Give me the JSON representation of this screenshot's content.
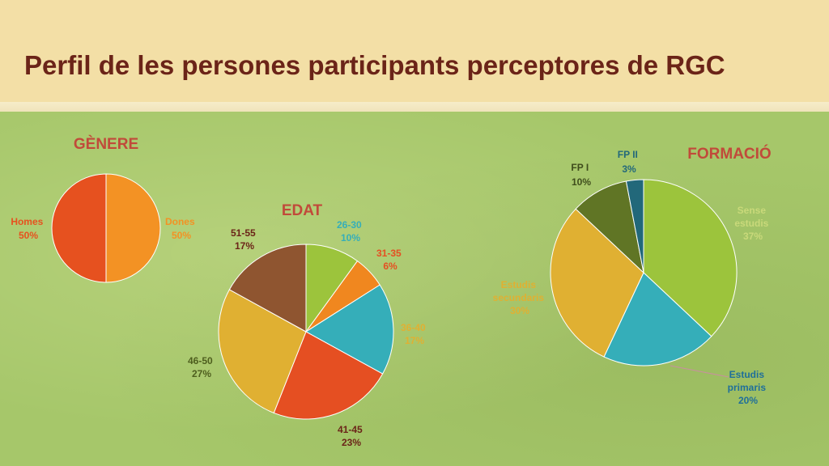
{
  "slide": {
    "title": "Perfil de les persones participants perceptores de RGC"
  },
  "chart_data": [
    {
      "type": "pie",
      "title": "GÈNERE",
      "slices": [
        {
          "label": "Dones",
          "value": 50,
          "value_label": "50%",
          "color": "#f39224"
        },
        {
          "label": "Homes",
          "value": 50,
          "value_label": "50%",
          "color": "#e6511f"
        }
      ]
    },
    {
      "type": "pie",
      "title": "EDAT",
      "slices": [
        {
          "label": "26-30",
          "value": 10,
          "value_label": "10%",
          "color": "#9cc43c"
        },
        {
          "label": "31-35",
          "value": 6,
          "value_label": "6%",
          "color": "#f0871f"
        },
        {
          "label": "36-40",
          "value": 17,
          "value_label": "17%",
          "color": "#35aeb9"
        },
        {
          "label": "41-45",
          "value": 23,
          "value_label": "23%",
          "color": "#e54f22"
        },
        {
          "label": "46-50",
          "value": 27,
          "value_label": "27%",
          "color": "#e0b032"
        },
        {
          "label": "51-55",
          "value": 17,
          "value_label": "17%",
          "color": "#8f5530"
        }
      ]
    },
    {
      "type": "pie",
      "title": "FORMACIÓ",
      "slices": [
        {
          "label": "Sense estudis",
          "value": 37,
          "value_label": "37%",
          "color": "#9cc43c"
        },
        {
          "label": "Estudis primaris",
          "value": 20,
          "value_label": "20%",
          "color": "#35aeb9"
        },
        {
          "label": "Estudis secundaris",
          "value": 30,
          "value_label": "30%",
          "color": "#e0b032"
        },
        {
          "label": "FP I",
          "value": 10,
          "value_label": "10%",
          "color": "#607525"
        },
        {
          "label": "FP II",
          "value": 3,
          "value_label": "3%",
          "color": "#22687a"
        }
      ]
    }
  ]
}
